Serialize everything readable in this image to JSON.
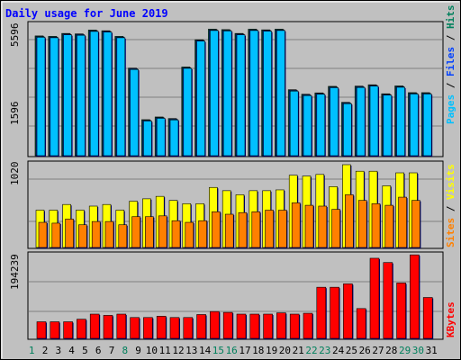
{
  "chart_data": {
    "type": "bar",
    "title": "Daily usage for June 2019",
    "colors": {
      "background": "#c0c0c0",
      "title": "#0000ff",
      "hits": "#00805c",
      "files": "#0040ff",
      "pages": "#00c0ff",
      "sites": "#ff8000",
      "visits": "#ffff00",
      "kbytes": "#ff0000",
      "weekend_label": "#00805c",
      "weekday_label": "#000000",
      "divider": "#0000ff"
    },
    "days": [
      "1",
      "2",
      "3",
      "4",
      "5",
      "6",
      "7",
      "8",
      "9",
      "10",
      "11",
      "12",
      "13",
      "14",
      "15",
      "16",
      "17",
      "18",
      "19",
      "20",
      "21",
      "22",
      "23",
      "24",
      "25",
      "26",
      "27",
      "28",
      "29",
      "30",
      "31"
    ],
    "weekend_days": [
      1,
      8,
      15,
      16,
      22,
      23,
      29,
      30
    ],
    "panel_top": {
      "max_label": "5596",
      "mid_label": "1596",
      "ylim": [
        0,
        5596
      ],
      "legend": {
        "pages": "Pages",
        "files": "Files",
        "hits": "Hits",
        "sep": " / "
      },
      "series": [
        {
          "name": "Hits",
          "values": [
            5320,
            5300,
            5430,
            5410,
            5580,
            5550,
            5300,
            3890,
            1600,
            1720,
            1650,
            3940,
            5150,
            5620,
            5600,
            5430,
            5620,
            5590,
            5620,
            2930,
            2730,
            2790,
            3080,
            2370,
            3090,
            3150,
            2750,
            3100,
            2800,
            2800,
            0
          ]
        },
        {
          "name": "Files",
          "values": [
            5290,
            5270,
            5400,
            5380,
            5550,
            5520,
            5270,
            3860,
            1570,
            1690,
            1620,
            3910,
            5120,
            5590,
            5570,
            5400,
            5590,
            5560,
            5590,
            2900,
            2700,
            2760,
            3050,
            2340,
            3060,
            3120,
            2720,
            3070,
            2770,
            2770,
            0
          ]
        },
        {
          "name": "Pages",
          "values": [
            5260,
            5240,
            5370,
            5350,
            5520,
            5490,
            5240,
            3830,
            1540,
            1660,
            1590,
            3880,
            5090,
            5560,
            5540,
            5370,
            5560,
            5530,
            5560,
            2870,
            2670,
            2730,
            3020,
            2310,
            3030,
            3090,
            2690,
            3040,
            2740,
            2740,
            0
          ]
        }
      ]
    },
    "panel_mid": {
      "max_label": "1020",
      "ylim": [
        0,
        1020
      ],
      "legend": {
        "sites": "Sites",
        "visits": "Visits",
        "sep": " / "
      },
      "series": [
        {
          "name": "Visits",
          "values": [
            460,
            460,
            530,
            460,
            510,
            530,
            460,
            570,
            600,
            630,
            580,
            540,
            540,
            740,
            700,
            650,
            700,
            700,
            710,
            890,
            880,
            900,
            750,
            1020,
            940,
            940,
            760,
            920,
            920,
            0,
            0
          ]
        },
        {
          "name": "Sites",
          "values": [
            310,
            300,
            350,
            280,
            320,
            320,
            280,
            380,
            380,
            390,
            330,
            310,
            330,
            440,
            410,
            430,
            440,
            460,
            460,
            550,
            520,
            510,
            470,
            650,
            580,
            540,
            520,
            620,
            580,
            0,
            0
          ]
        }
      ]
    },
    "panel_bot": {
      "max_label": "194239",
      "ylim": [
        0,
        194239
      ],
      "legend": {
        "kbytes": "KBytes"
      },
      "series": [
        {
          "name": "KBytes",
          "values": [
            39000,
            39000,
            39000,
            45000,
            57000,
            54000,
            57000,
            49000,
            49000,
            52000,
            49000,
            49000,
            56000,
            63000,
            61000,
            57000,
            57000,
            57000,
            60000,
            57000,
            59000,
            120000,
            120000,
            128000,
            70000,
            188000,
            178000,
            130000,
            196000,
            96000,
            0
          ]
        }
      ]
    }
  }
}
